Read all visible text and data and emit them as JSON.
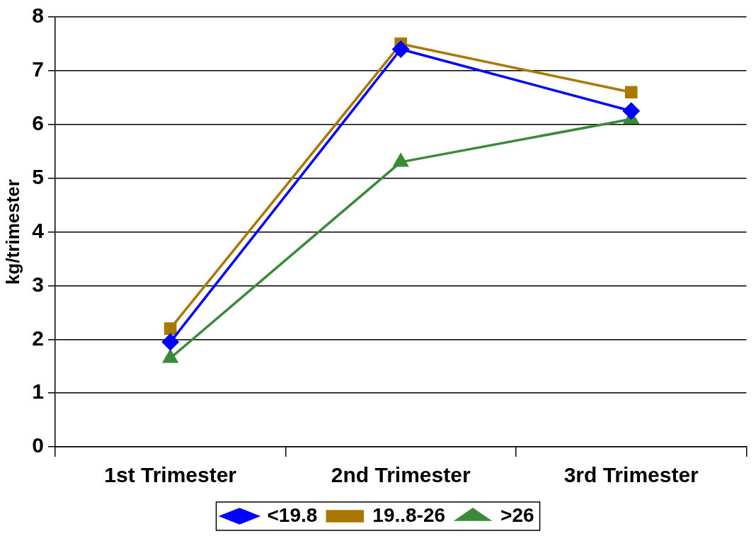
{
  "chart_data": {
    "type": "line",
    "ylabel": "kg/trimester",
    "categories": [
      "1st Trimester",
      "2nd Trimester",
      "3rd Trimester"
    ],
    "series": [
      {
        "name": "<19.8",
        "color": "#0000ff",
        "marker": "diamond",
        "values": [
          1.95,
          7.4,
          6.25
        ]
      },
      {
        "name": "19..8-26",
        "color": "#aa7700",
        "marker": "square",
        "values": [
          2.2,
          7.5,
          6.6
        ]
      },
      {
        "name": ">26",
        "color": "#3a8a3a",
        "marker": "triangle",
        "values": [
          1.65,
          5.3,
          6.1
        ]
      }
    ],
    "ylim": [
      0,
      8
    ],
    "yticks": [
      0,
      1,
      2,
      3,
      4,
      5,
      6,
      7,
      8
    ],
    "grid": "y",
    "legend": "bottom",
    "line_style": "solid"
  }
}
